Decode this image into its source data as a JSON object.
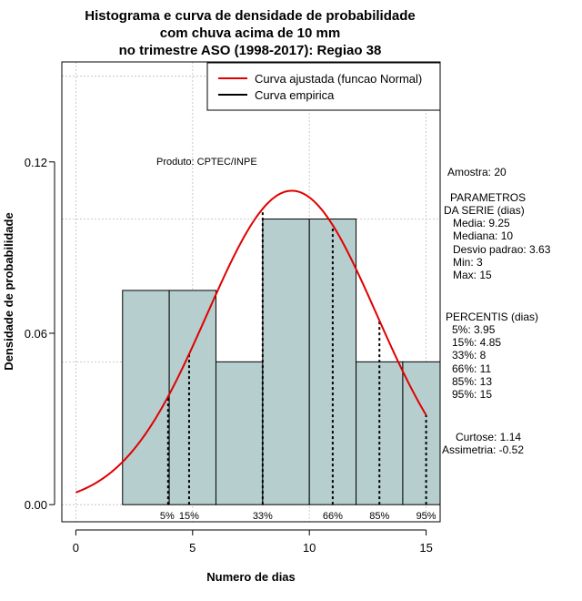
{
  "chart_data": {
    "type": "histogram",
    "title_lines": [
      "Histograma e curva de densidade de probabilidade",
      "com chuva acima de 10 mm",
      "no trimestre ASO (1998-2017): Regiao 38"
    ],
    "xlabel": "Numero de dias",
    "ylabel": "Densidade de probabilidade",
    "xlim": [
      -0.6,
      15.6
    ],
    "ylim": [
      -0.006,
      0.155
    ],
    "x_ticks": [
      0,
      5,
      10,
      15
    ],
    "y_ticks": [
      0.0,
      0.06,
      0.12
    ],
    "y_tick_labels": [
      "0.00",
      "0.06",
      "0.12"
    ],
    "grid": true,
    "bars": [
      {
        "x0": 2,
        "x1": 4,
        "density": 0.075
      },
      {
        "x0": 4,
        "x1": 6,
        "density": 0.075
      },
      {
        "x0": 6,
        "x1": 8,
        "density": 0.05
      },
      {
        "x0": 8,
        "x1": 10,
        "density": 0.1
      },
      {
        "x0": 10,
        "x1": 12,
        "density": 0.1
      },
      {
        "x0": 12,
        "x1": 14,
        "density": 0.05
      },
      {
        "x0": 14,
        "x1": 16,
        "density": 0.05
      }
    ],
    "bar_color": "#b6cece",
    "normal_fit": {
      "mean": 9.25,
      "sd": 3.63,
      "x_from": 0,
      "x_to": 15,
      "color": "#e00000"
    },
    "percentiles": [
      {
        "label": "5%",
        "x": 3.95
      },
      {
        "label": "15%",
        "x": 4.85
      },
      {
        "label": "33%",
        "x": 8
      },
      {
        "label": "66%",
        "x": 11
      },
      {
        "label": "85%",
        "x": 13
      },
      {
        "label": "95%",
        "x": 15
      }
    ],
    "legend": {
      "position": "top-right",
      "items": [
        {
          "label": "Curva ajustada (funcao Normal)",
          "color": "#e00000"
        },
        {
          "label": "Curva empirica",
          "color": "#000000"
        }
      ]
    },
    "annotation": "Produto: CPTEC/INPE"
  },
  "side_panel": {
    "amostra": "Amostra: 20",
    "params_title_1": "PARAMETROS",
    "params_title_2": "DA SERIE (dias)",
    "params": [
      "Media: 9.25",
      "Mediana: 10",
      "Desvio padrao: 3.63",
      "Min: 3",
      "Max: 15"
    ],
    "percentis_title": "PERCENTIS (dias)",
    "percentis": [
      "5%: 3.95",
      "15%: 4.85",
      "33%: 8",
      "66%: 11",
      "85%: 13",
      "95%: 15"
    ],
    "curtose": "Curtose: 1.14",
    "assimetria": "Assimetria: -0.52"
  }
}
